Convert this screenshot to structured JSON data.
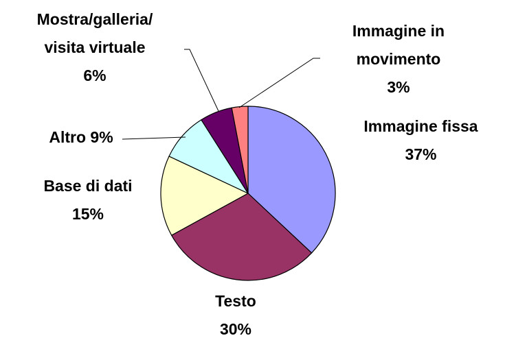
{
  "chart_data": {
    "type": "pie",
    "categories": [
      "Immagine fissa",
      "Testo",
      "Base di dati",
      "Altro",
      "Mostra/galleria/\nvisita virtuale",
      "Immagine in movimento"
    ],
    "values": [
      37,
      30,
      15,
      9,
      6,
      3
    ],
    "value_labels": [
      "37%",
      "30%",
      "15%",
      "9%",
      "6%",
      "3%"
    ],
    "colors": [
      "#9999ff",
      "#993366",
      "#ffffcc",
      "#ccffff",
      "#660066",
      "#ff8080"
    ]
  }
}
